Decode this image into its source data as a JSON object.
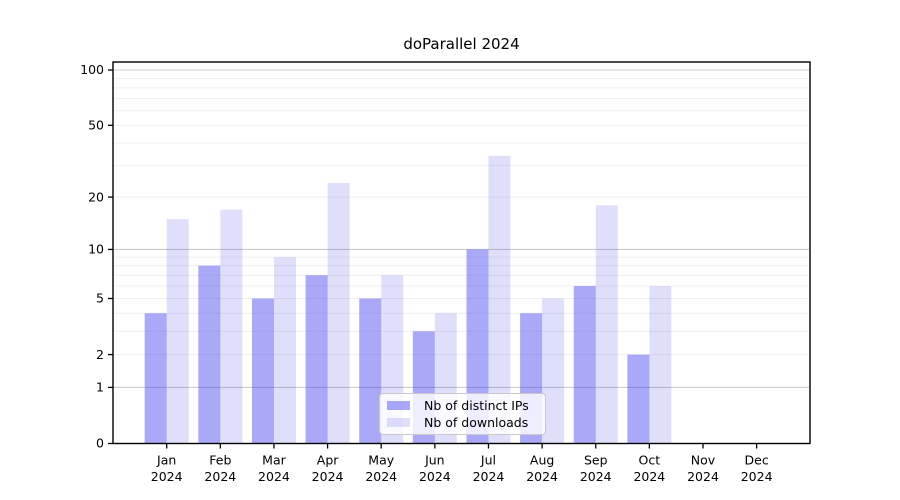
{
  "page": {
    "background": "#ffffff"
  },
  "chart_data": {
    "type": "bar",
    "title": "doParallel 2024",
    "categories": [
      "Jan",
      "Feb",
      "Mar",
      "Apr",
      "May",
      "Jun",
      "Jul",
      "Aug",
      "Sep",
      "Oct",
      "Nov",
      "Dec"
    ],
    "x_tick_year": "2024",
    "series": [
      {
        "name": "Nb of distinct IPs",
        "color": "rgba(64,64,238,0.45)",
        "values": [
          4,
          8,
          5,
          7,
          5,
          3,
          10,
          4,
          6,
          2,
          0,
          0
        ]
      },
      {
        "name": "Nb of downloads",
        "color": "rgba(64,64,238,0.17)",
        "values": [
          15,
          17,
          9,
          24,
          7,
          4,
          34,
          5,
          18,
          6,
          0,
          0
        ]
      }
    ],
    "y_scale": "log1p",
    "ylim": [
      0,
      100
    ],
    "y_tick_labels": [
      0,
      1,
      2,
      5,
      10,
      20,
      50,
      100
    ],
    "y_major_gridlines": [
      1,
      10,
      100
    ],
    "y_minor_gridlines": [
      2,
      3,
      4,
      5,
      6,
      7,
      8,
      9,
      20,
      30,
      40,
      50,
      60,
      70,
      80,
      90
    ],
    "grid": true,
    "legend_position": "inside-bottom-center",
    "colors": {
      "axis": "#000000",
      "tick_label": "#000000",
      "major_grid": "#cccccc",
      "minor_grid": "#efefef"
    }
  }
}
